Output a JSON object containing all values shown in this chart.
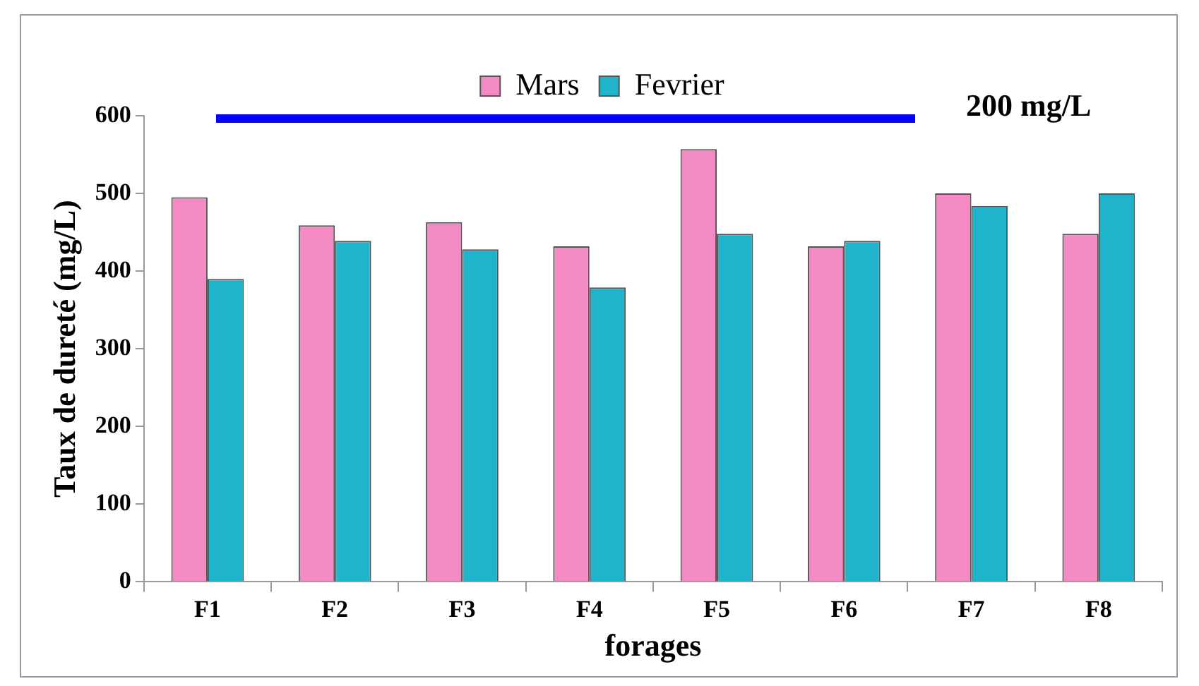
{
  "chart_data": {
    "type": "bar",
    "xlabel": "forages",
    "ylabel": "Taux de dureté (mg/L)",
    "categories": [
      "F1",
      "F2",
      "F3",
      "F4",
      "F5",
      "F6",
      "F7",
      "F8"
    ],
    "series": [
      {
        "name": "Mars",
        "color": "#f48ac4",
        "values": [
          495,
          459,
          463,
          432,
          557,
          432,
          500,
          448
        ]
      },
      {
        "name": "Fevrier",
        "color": "#1fb4cc",
        "values": [
          390,
          439,
          428,
          379,
          448,
          439,
          484,
          500
        ]
      }
    ],
    "ylim": [
      0,
      600
    ],
    "yticks": [
      0,
      100,
      200,
      300,
      400,
      500,
      600
    ],
    "grid": false,
    "legend": "top",
    "annotations": [
      "200 mg/L"
    ]
  }
}
